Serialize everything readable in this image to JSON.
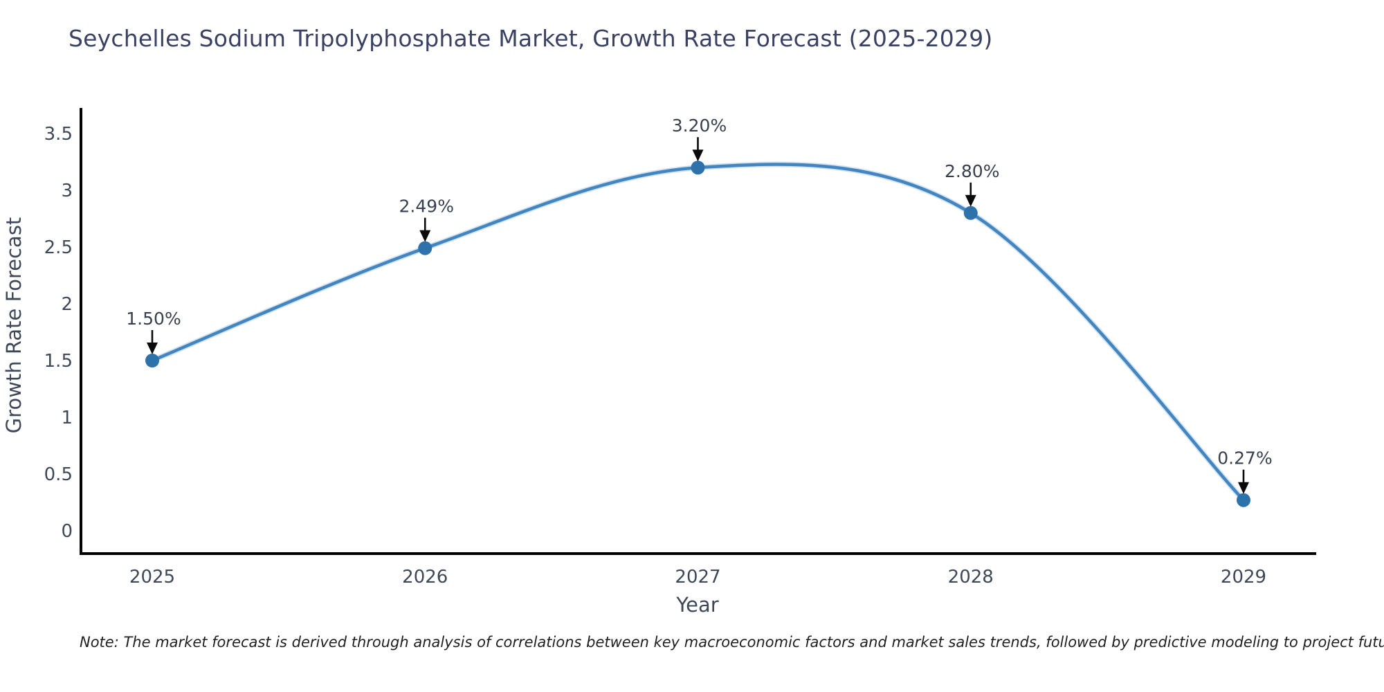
{
  "title": "Seychelles Sodium Tripolyphosphate Market, Growth Rate Forecast (2025-2029)",
  "note": "Note: The market forecast is derived through analysis of correlations between key macroeconomic factors and market sales trends, followed by predictive modeling to project future sales",
  "chart_data": {
    "type": "line",
    "title": "Seychelles Sodium Tripolyphosphate Market, Growth Rate Forecast (2025-2029)",
    "x": [
      2025,
      2026,
      2027,
      2028,
      2029
    ],
    "values": [
      1.5,
      2.49,
      3.2,
      2.8,
      0.27
    ],
    "point_labels": [
      "1.50%",
      "2.49%",
      "3.20%",
      "2.80%",
      "0.27%"
    ],
    "xlabel": "Year",
    "ylabel": "Growth Rate Forecast",
    "x_tick_labels": [
      "2025",
      "2026",
      "2027",
      "2028",
      "2029"
    ],
    "y_tick_labels": [
      "3.5",
      "3",
      "2.5",
      "2",
      "1.5",
      "1",
      "0.5",
      "0"
    ],
    "y_tick_values": [
      3.5,
      3,
      2.5,
      2,
      1.5,
      1,
      0.5,
      0
    ],
    "ylim": [
      0,
      3.5
    ],
    "grid": false,
    "legend": "none",
    "colors": {
      "line": "#4285bf",
      "line_halo": "#a9cbe5",
      "marker": "#2d72ab",
      "axis": "#000000",
      "tick_text": "#3e4858",
      "annotation_text": "#38404d",
      "annotation_arrow": "#0a0a0a"
    }
  }
}
